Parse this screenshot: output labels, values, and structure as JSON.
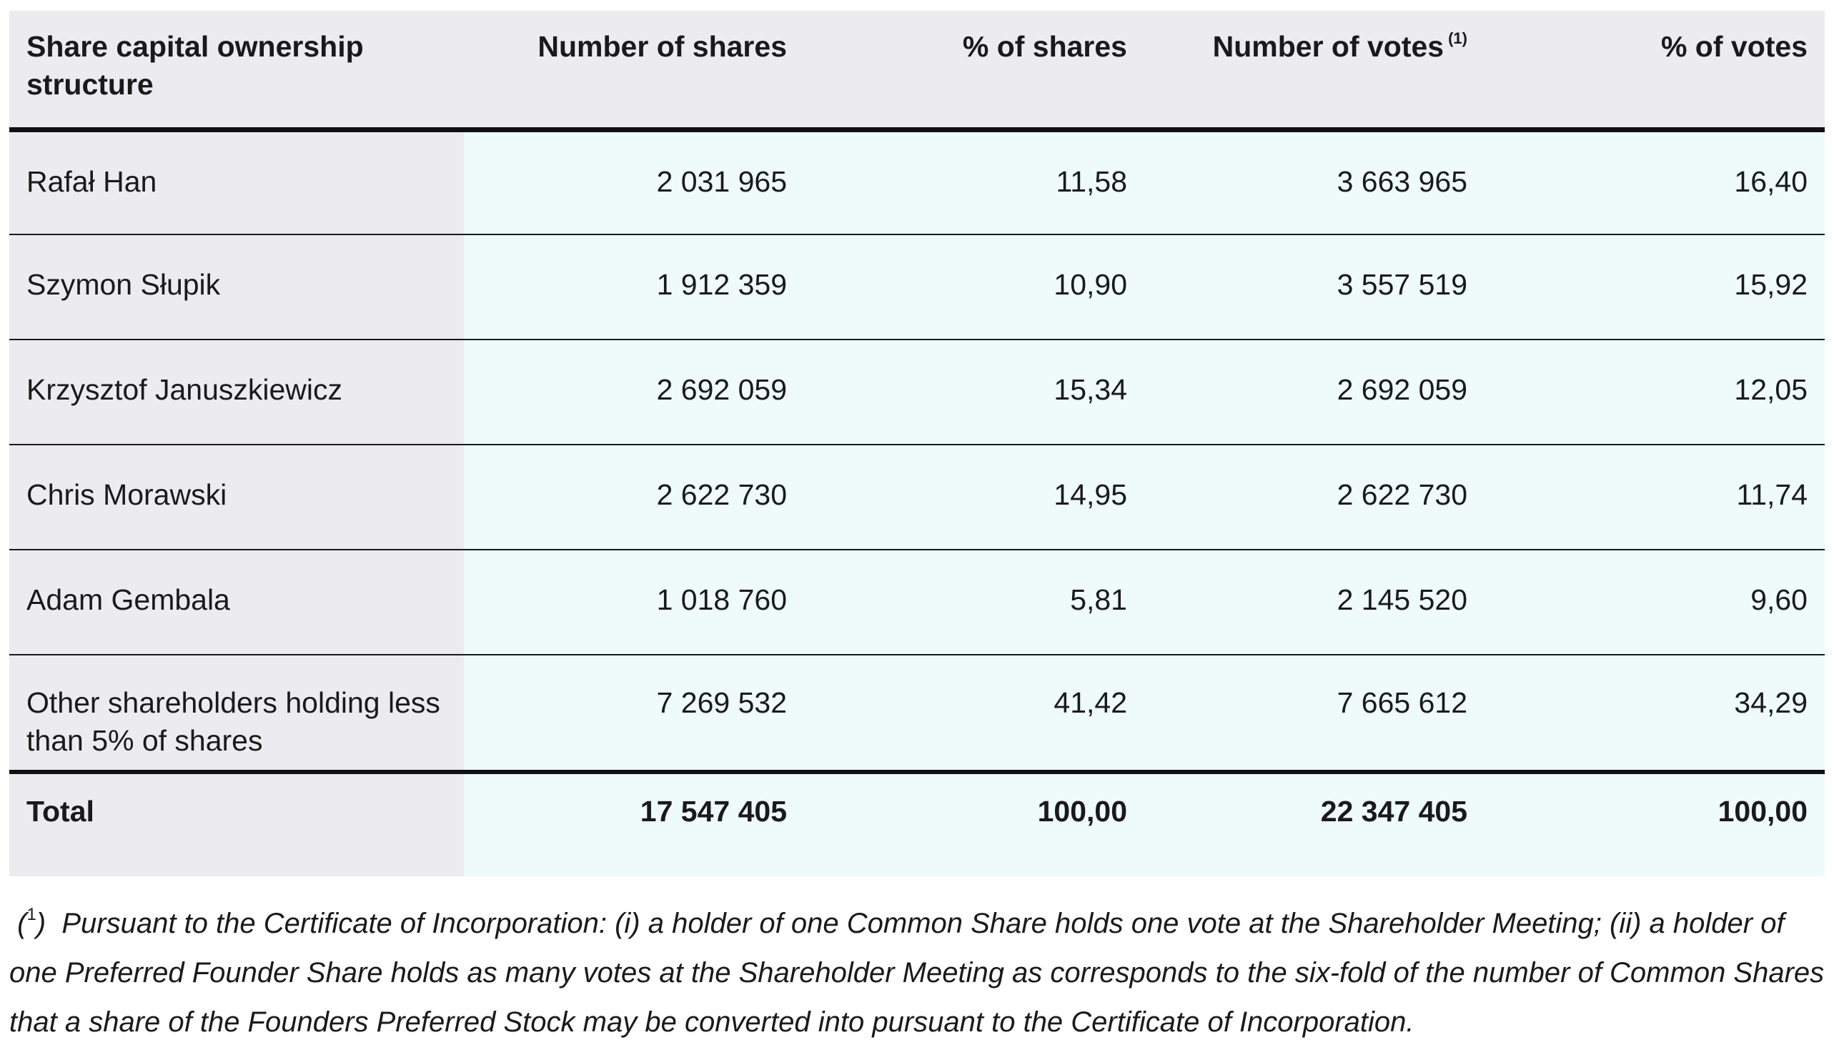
{
  "table": {
    "headers": {
      "col1": "Share capital ownership structure",
      "col2": "Number of shares",
      "col3": "% of shares",
      "col4": "Number of votes",
      "col4_note": "(1)",
      "col5": "% of votes"
    },
    "rows": [
      {
        "name": "Rafał Han",
        "shares": "2 031 965",
        "pct_shares": "11,58",
        "votes": "3 663 965",
        "pct_votes": "16,40"
      },
      {
        "name": "Szymon Słupik",
        "shares": "1 912 359",
        "pct_shares": "10,90",
        "votes": "3 557 519",
        "pct_votes": "15,92"
      },
      {
        "name": "Krzysztof Januszkiewicz",
        "shares": "2 692 059",
        "pct_shares": "15,34",
        "votes": "2 692 059",
        "pct_votes": "12,05"
      },
      {
        "name": "Chris Morawski",
        "shares": "2 622 730",
        "pct_shares": "14,95",
        "votes": "2 622 730",
        "pct_votes": "11,74"
      },
      {
        "name": "Adam Gembala",
        "shares": "1 018 760",
        "pct_shares": "5,81",
        "votes": "2 145 520",
        "pct_votes": "9,60"
      },
      {
        "name": "Other shareholders holding less than 5% of shares",
        "shares": "7 269 532",
        "pct_shares": "41,42",
        "votes": "7 665 612",
        "pct_votes": "34,29"
      }
    ],
    "total": {
      "name": "Total",
      "shares": "17 547 405",
      "pct_shares": "100,00",
      "votes": "22 347 405",
      "pct_votes": "100,00"
    }
  },
  "footnote": {
    "marker": "1",
    "text": "Pursuant to the Certificate of Incorporation: (i) a holder of one Common Share holds one vote at the Shareholder Meeting; (ii) a holder of one Preferred Founder Share holds as many votes at the Shareholder Meeting as corresponds to the six-fold of the number of Common Shares that a share of the Founders Preferred Stock may be converted into pursuant to the Certificate of Incorporation."
  }
}
